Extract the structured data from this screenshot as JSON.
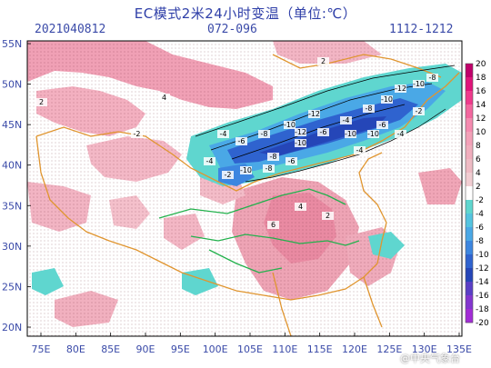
{
  "header": {
    "title": "EC模式2米24小时变温（单位:℃）",
    "init_time": "2021040812",
    "forecast_hours": "072-096",
    "valid_period": "1112-1212"
  },
  "map": {
    "lat_labels": [
      "55N",
      "50N",
      "45N",
      "40N",
      "35N",
      "30N",
      "25N",
      "20N"
    ],
    "lon_labels": [
      "75E",
      "80E",
      "85E",
      "90E",
      "95E",
      "100E",
      "105E",
      "110E",
      "115E",
      "120E",
      "125E",
      "130E",
      "135E"
    ],
    "contour_labels": [
      "-4",
      "-6",
      "-8",
      "-10",
      "-12",
      "-8",
      "-10",
      "-6",
      "-4",
      "-8",
      "-10",
      "-12",
      "-10",
      "-8",
      "-6",
      "-4",
      "-2",
      "-10",
      "-8",
      "-6",
      "2",
      "4",
      "2",
      "-2",
      "-4",
      "-2",
      "-4",
      "4",
      "6",
      "2",
      "-10",
      "-12",
      "-10"
    ]
  },
  "colorbar": {
    "levels": [
      "20",
      "18",
      "16",
      "14",
      "12",
      "10",
      "8",
      "6",
      "4",
      "2",
      "-2",
      "-4",
      "-6",
      "-8",
      "-10",
      "-12",
      "-14",
      "-16",
      "-18",
      "-20"
    ],
    "colors": [
      "#c0006a",
      "#e0147a",
      "#ef3a8c",
      "#f3679f",
      "#f58bb0",
      "#f3a1b8",
      "#f0aebd",
      "#eebbc4",
      "#f1cdd2",
      "#ffffff",
      "#5fd6cf",
      "#54c4e0",
      "#4aa8e6",
      "#3c86e0",
      "#2f63cf",
      "#2546b8",
      "#5a3fc6",
      "#8336cf",
      "#a22cd6"
    ]
  },
  "watermark": "@中央气象台"
}
